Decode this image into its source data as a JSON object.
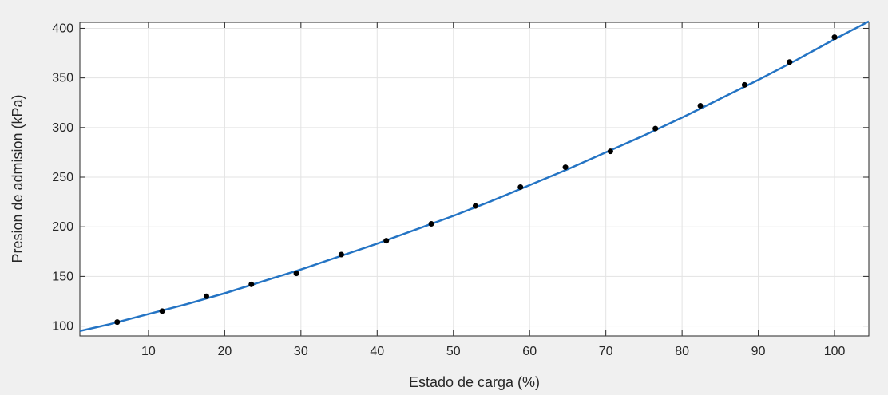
{
  "chart_data": {
    "type": "line",
    "xlabel": "Estado de carga (%)",
    "ylabel": "Presion de admision (kPa)",
    "xlim": [
      1,
      104.5
    ],
    "ylim": [
      90,
      406
    ],
    "xticks": [
      10,
      20,
      30,
      40,
      50,
      60,
      70,
      80,
      90,
      100
    ],
    "yticks": [
      100,
      150,
      200,
      250,
      300,
      350,
      400
    ],
    "grid": true,
    "series": [
      {
        "kind": "scatter",
        "color": "#000000",
        "x": [
          5.9,
          11.8,
          17.6,
          23.5,
          29.4,
          35.3,
          41.2,
          47.1,
          52.9,
          58.8,
          64.7,
          70.6,
          76.5,
          82.4,
          88.2,
          94.1,
          100
        ],
        "y": [
          104,
          115,
          130,
          142,
          153,
          172,
          186,
          203,
          221,
          240,
          260,
          276,
          299,
          322,
          343,
          366,
          391
        ]
      },
      {
        "kind": "line",
        "color": "#2474c4",
        "x": [
          1,
          5,
          10,
          15,
          20,
          25,
          30,
          35,
          40,
          45,
          50,
          55,
          60,
          65,
          70,
          75,
          80,
          85,
          90,
          95,
          100,
          104.5
        ],
        "y": [
          95,
          102,
          112,
          122,
          133,
          145,
          157,
          170,
          183,
          197,
          211,
          226,
          242,
          258,
          275,
          292,
          310,
          329,
          348,
          368,
          389,
          407
        ]
      }
    ]
  }
}
